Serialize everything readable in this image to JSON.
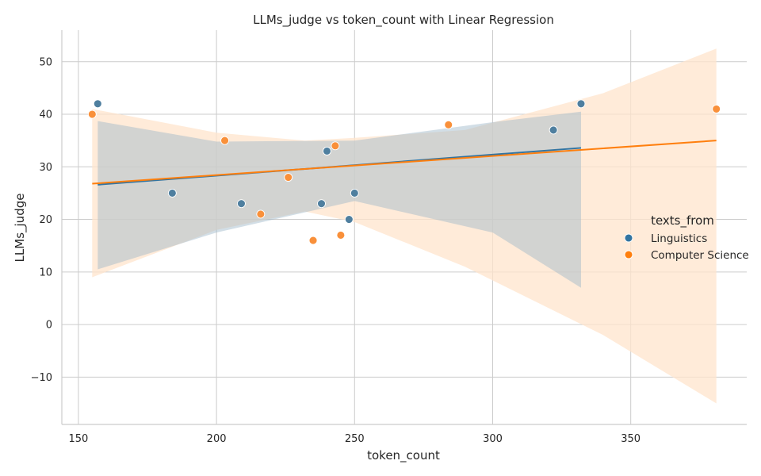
{
  "chart_data": {
    "type": "scatter",
    "title": "LLMs_judge vs token_count with Linear Regression",
    "xlabel": "token_count",
    "ylabel": "LLMs_judge",
    "xlim": [
      144,
      392
    ],
    "ylim": [
      -19,
      56
    ],
    "xticks": [
      150,
      200,
      250,
      300,
      350
    ],
    "yticks": [
      -10,
      0,
      10,
      20,
      30,
      40,
      50
    ],
    "grid": true,
    "legend": {
      "title": "texts_from",
      "placement": "right"
    },
    "series": [
      {
        "name": "Linguistics",
        "color": "#3274a1",
        "points": [
          {
            "x": 157,
            "y": 42
          },
          {
            "x": 184,
            "y": 25
          },
          {
            "x": 209,
            "y": 23
          },
          {
            "x": 238,
            "y": 23
          },
          {
            "x": 240,
            "y": 33
          },
          {
            "x": 248,
            "y": 20
          },
          {
            "x": 250,
            "y": 25
          },
          {
            "x": 322,
            "y": 37
          },
          {
            "x": 332,
            "y": 42
          }
        ],
        "regression": {
          "x": [
            157,
            332
          ],
          "y": [
            26.6,
            33.6
          ]
        },
        "ci_band": {
          "x": [
            157,
            200,
            250,
            300,
            332
          ],
          "lower": [
            10.5,
            17.5,
            23.5,
            17.5,
            7
          ],
          "upper": [
            38.7,
            34.8,
            35,
            38.5,
            40.5
          ]
        }
      },
      {
        "name": "Computer Science",
        "color": "#ff7f0e",
        "points": [
          {
            "x": 155,
            "y": 40
          },
          {
            "x": 203,
            "y": 35
          },
          {
            "x": 216,
            "y": 21
          },
          {
            "x": 226,
            "y": 28
          },
          {
            "x": 235,
            "y": 16
          },
          {
            "x": 243,
            "y": 34
          },
          {
            "x": 245,
            "y": 17
          },
          {
            "x": 284,
            "y": 38
          },
          {
            "x": 381,
            "y": 41
          }
        ],
        "regression": {
          "x": [
            155,
            381
          ],
          "y": [
            26.8,
            35.0
          ]
        },
        "ci_band": {
          "x": [
            155,
            200,
            232,
            250,
            290,
            340,
            381
          ],
          "lower": [
            9,
            18,
            21.5,
            19.5,
            11,
            -2,
            -15
          ],
          "upper": [
            41,
            36.5,
            35,
            35.5,
            37,
            44,
            52.5
          ]
        }
      }
    ]
  }
}
